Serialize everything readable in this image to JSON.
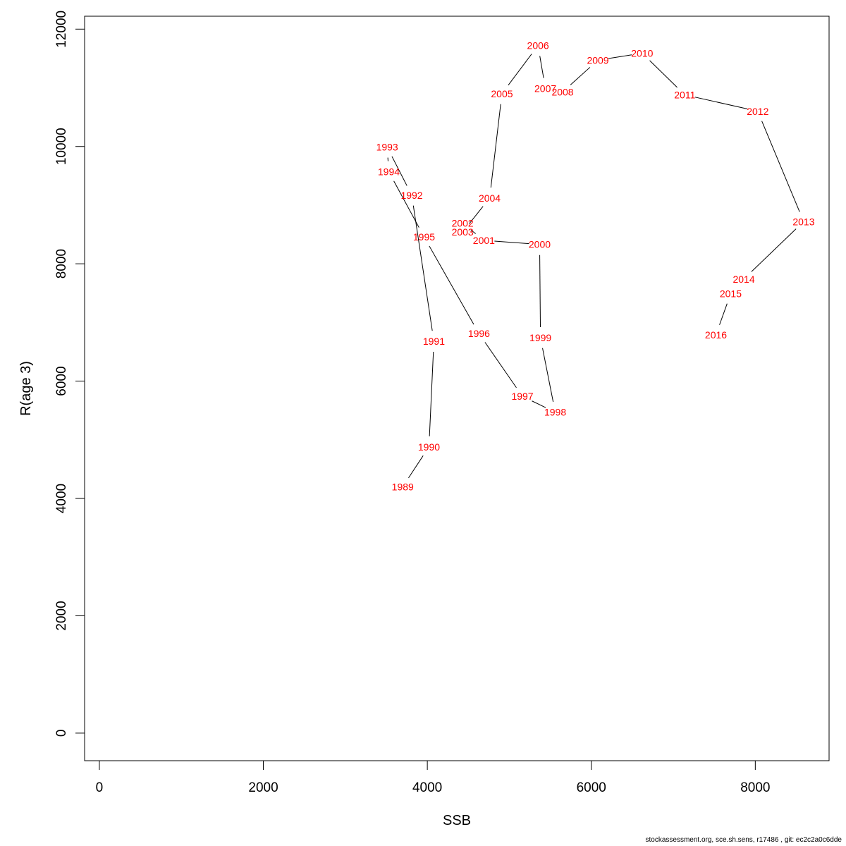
{
  "footer_text": "stockassessment.org, sce.sh.sens, r17486 , git: ec2c2a0c6dde",
  "colors": {
    "line": "#000000",
    "label": "#ff0000",
    "axis": "#000000",
    "background": "#ffffff"
  },
  "chart_data": {
    "type": "line",
    "xlabel": "SSB",
    "ylabel": "R(age 3)",
    "xlim": [
      -180,
      8900
    ],
    "ylim": [
      -470,
      12220
    ],
    "x_ticks": [
      0,
      2000,
      4000,
      6000,
      8000
    ],
    "y_ticks": [
      0,
      2000,
      4000,
      6000,
      8000,
      10000,
      12000
    ],
    "grid": false,
    "legend": "none",
    "series": [
      {
        "points": [
          {
            "label": "1989",
            "x": 3700,
            "y": 4200
          },
          {
            "label": "1990",
            "x": 4020,
            "y": 4880
          },
          {
            "label": "1991",
            "x": 4080,
            "y": 6680
          },
          {
            "label": "1992",
            "x": 3810,
            "y": 9170
          },
          {
            "label": "1993",
            "x": 3510,
            "y": 9990
          },
          {
            "label": "1994",
            "x": 3530,
            "y": 9570
          },
          {
            "label": "1995",
            "x": 3960,
            "y": 8460
          },
          {
            "label": "1996",
            "x": 4630,
            "y": 6810
          },
          {
            "label": "1997",
            "x": 5160,
            "y": 5740
          },
          {
            "label": "1998",
            "x": 5560,
            "y": 5470
          },
          {
            "label": "1999",
            "x": 5380,
            "y": 6740
          },
          {
            "label": "2000",
            "x": 5370,
            "y": 8330
          },
          {
            "label": "2001",
            "x": 4690,
            "y": 8400
          },
          {
            "label": "2002",
            "x": 4430,
            "y": 8690
          },
          {
            "label": "2003",
            "x": 4430,
            "y": 8540
          },
          {
            "label": "2004",
            "x": 4760,
            "y": 9120
          },
          {
            "label": "2005",
            "x": 4910,
            "y": 10900
          },
          {
            "label": "2006",
            "x": 5350,
            "y": 11720
          },
          {
            "label": "2007",
            "x": 5440,
            "y": 10990
          },
          {
            "label": "2008",
            "x": 5650,
            "y": 10930
          },
          {
            "label": "2009",
            "x": 6080,
            "y": 11470
          },
          {
            "label": "2010",
            "x": 6620,
            "y": 11590
          },
          {
            "label": "2011",
            "x": 7140,
            "y": 10880
          },
          {
            "label": "2012",
            "x": 8030,
            "y": 10600
          },
          {
            "label": "2013",
            "x": 8590,
            "y": 8720
          },
          {
            "label": "2014",
            "x": 7860,
            "y": 7740
          },
          {
            "label": "2015",
            "x": 7700,
            "y": 7490
          },
          {
            "label": "2016",
            "x": 7520,
            "y": 6790
          }
        ]
      }
    ]
  }
}
